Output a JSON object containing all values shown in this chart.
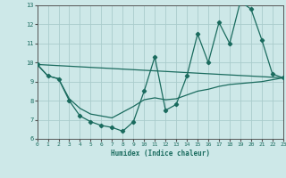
{
  "xlabel": "Humidex (Indice chaleur)",
  "bg_color": "#cde8e8",
  "grid_color": "#aacccc",
  "line_color": "#1a6b5e",
  "x_min": 0,
  "x_max": 23,
  "y_min": 6,
  "y_max": 13,
  "line1_x": [
    0,
    1,
    2,
    3,
    4,
    5,
    6,
    7,
    8,
    9,
    10,
    11,
    12,
    13,
    14,
    15,
    16,
    17,
    18,
    19,
    20,
    21,
    22,
    23
  ],
  "line1_y": [
    9.9,
    9.3,
    9.15,
    8.0,
    7.2,
    6.9,
    6.7,
    6.6,
    6.4,
    6.9,
    8.5,
    10.3,
    7.5,
    7.8,
    9.3,
    11.5,
    10.0,
    12.1,
    11.0,
    13.2,
    12.8,
    11.2,
    9.4,
    9.2
  ],
  "line2_x": [
    0,
    23
  ],
  "line2_y": [
    9.9,
    9.2
  ],
  "line3_x": [
    0,
    1,
    2,
    3,
    4,
    5,
    6,
    7,
    8,
    9,
    10,
    11,
    12,
    13,
    14,
    15,
    16,
    17,
    18,
    19,
    20,
    21,
    22,
    23
  ],
  "line3_y": [
    9.9,
    9.3,
    9.15,
    8.1,
    7.6,
    7.3,
    7.2,
    7.1,
    7.4,
    7.7,
    8.05,
    8.15,
    8.05,
    8.1,
    8.3,
    8.5,
    8.6,
    8.75,
    8.85,
    8.9,
    8.95,
    9.0,
    9.1,
    9.2
  ]
}
